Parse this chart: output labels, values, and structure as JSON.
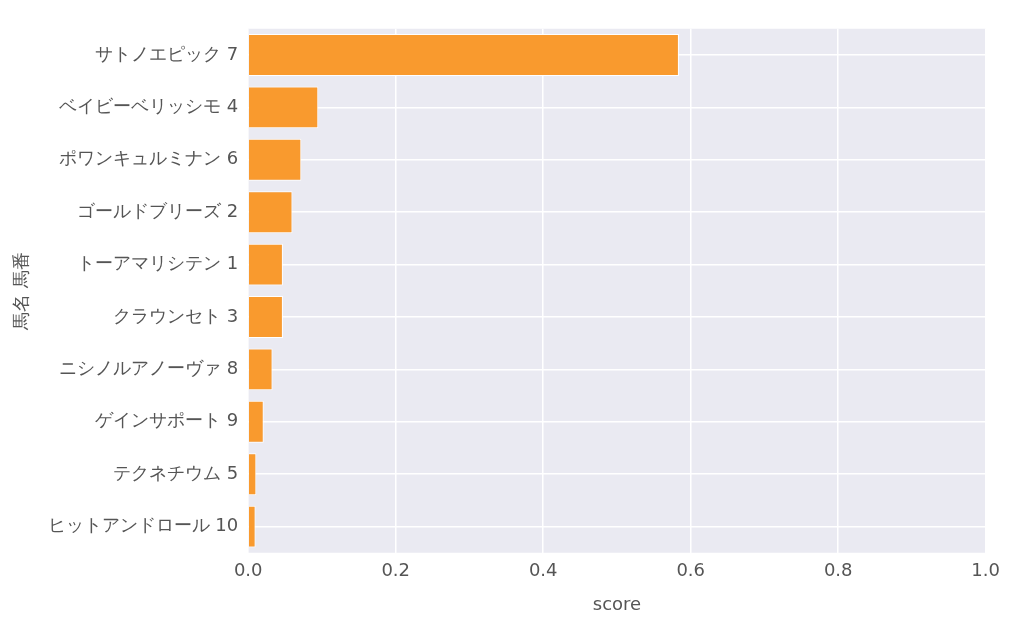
{
  "chart_data": {
    "type": "bar",
    "orientation": "horizontal",
    "xlabel": "score",
    "ylabel": "馬名 馬番",
    "categories": [
      "サトノエピック 7",
      "ベイビーベリッシモ 4",
      "ポワンキュルミナン 6",
      "ゴールドブリーズ 2",
      "トーアマリシテン 1",
      "クラウンセト 3",
      "ニシノルアノーヴァ 8",
      "ゲインサポート 9",
      "テクネチウム 5",
      "ヒットアンドロール 10"
    ],
    "values": [
      0.584,
      0.095,
      0.072,
      0.06,
      0.047,
      0.047,
      0.033,
      0.021,
      0.011,
      0.01
    ],
    "color": "#f99a2e",
    "xlim": [
      0,
      1
    ],
    "xticks": [
      {
        "value": 0,
        "label": "0.0"
      },
      {
        "value": 0.2,
        "label": "0.2"
      },
      {
        "value": 0.4,
        "label": "0.4"
      },
      {
        "value": 0.6,
        "label": "0.6"
      },
      {
        "value": 0.8,
        "label": "0.8"
      },
      {
        "value": 1,
        "label": "1.0"
      }
    ],
    "grid": true,
    "legend": false
  }
}
